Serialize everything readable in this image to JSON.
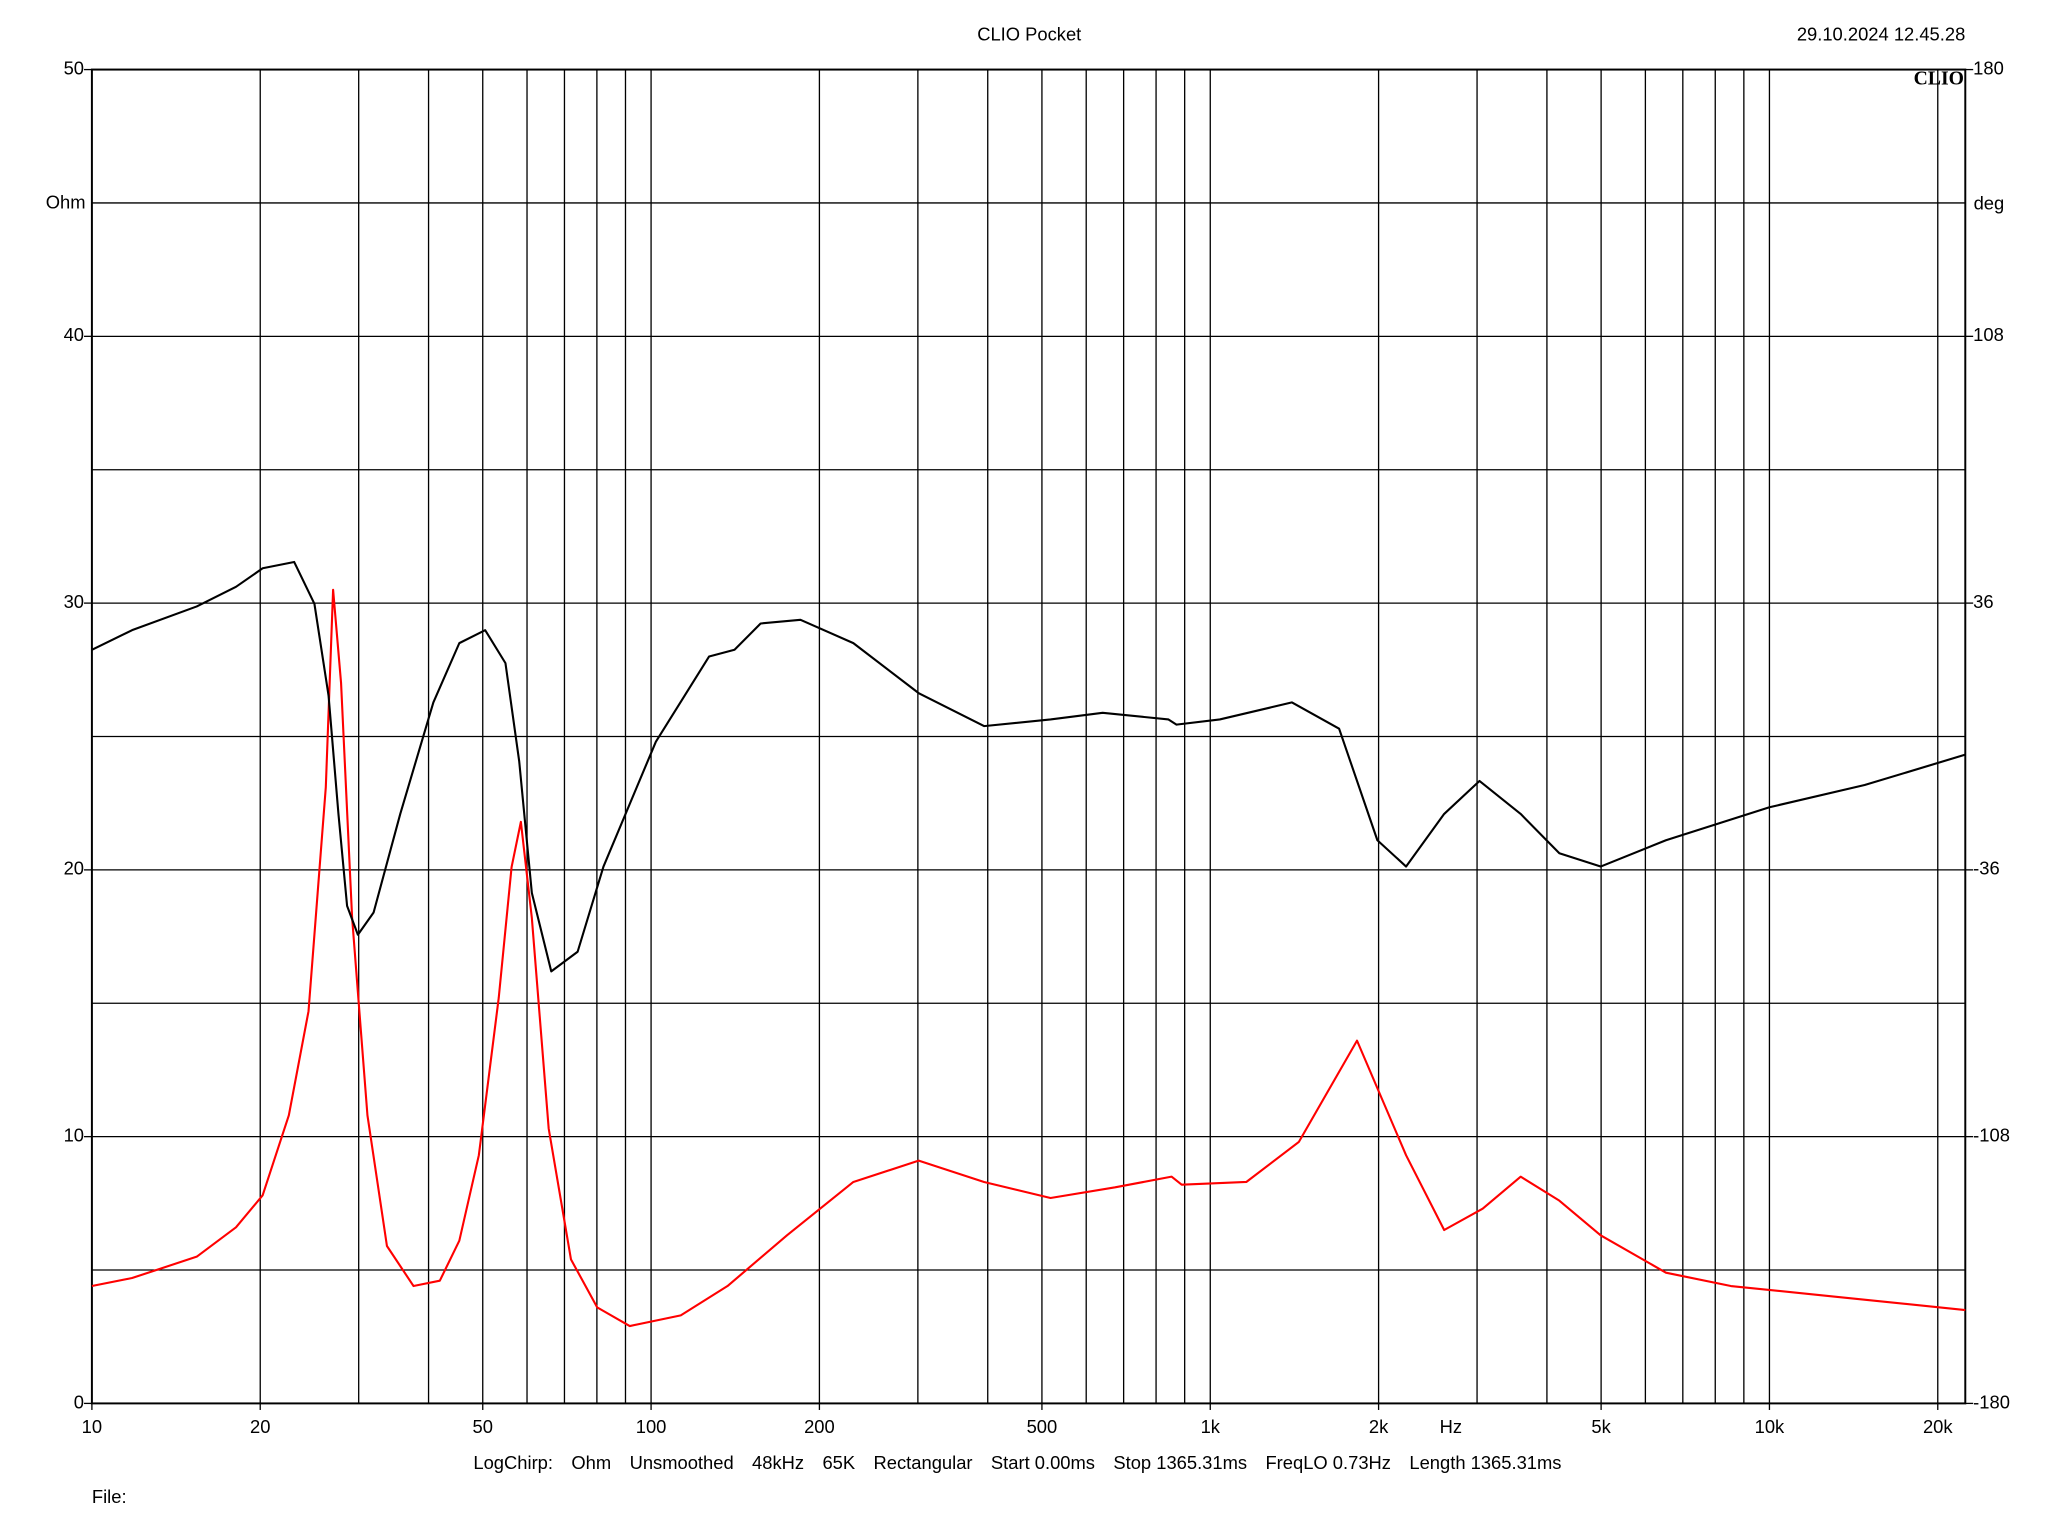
{
  "chart_data": {
    "type": "line",
    "title": "CLIO Pocket",
    "timestamp": "29.10.2024 12.45.28",
    "logo": "CLIO",
    "y_label": "Ohm",
    "y2_label": "deg",
    "x_label": "Hz",
    "xscale": "log",
    "xlim": [
      10,
      22400
    ],
    "xticks": [
      10,
      20,
      50,
      100,
      200,
      500,
      {
        "value": 1000,
        "label": "1k"
      },
      {
        "value": 2000,
        "label": "2k"
      },
      {
        "value": 5000,
        "label": "5k"
      },
      {
        "value": 10000,
        "label": "10k"
      },
      {
        "value": 20000,
        "label": "20k"
      }
    ],
    "xgrid": [
      10,
      20,
      30,
      40,
      50,
      60,
      70,
      80,
      90,
      100,
      200,
      300,
      400,
      500,
      600,
      700,
      800,
      900,
      1000,
      2000,
      3000,
      4000,
      5000,
      6000,
      7000,
      8000,
      9000,
      10000,
      20000
    ],
    "ylim": [
      0,
      50
    ],
    "yticks": [
      0,
      10,
      20,
      30,
      40,
      50
    ],
    "ygrid": [
      0,
      5,
      10,
      15,
      20,
      25,
      30,
      35,
      40,
      45,
      50
    ],
    "y2lim": [
      -180,
      180
    ],
    "y2ticks": [
      -180,
      -108,
      -36,
      36,
      108,
      180
    ],
    "grid": true,
    "series": [
      {
        "color": "#ff0000",
        "x": [
          10,
          11.8,
          15.4,
          18.1,
          20.2,
          22.5,
          24.4,
          26.2,
          27,
          27.9,
          29.2,
          31.1,
          33.7,
          37.6,
          41.9,
          45.4,
          49.2,
          53.4,
          56.3,
          58.5,
          61.2,
          65.6,
          71.9,
          80.1,
          91.6,
          113,
          137,
          175,
          230,
          301,
          394,
          518,
          676,
          853,
          889,
          1160,
          1440,
          1830,
          2240,
          2620,
          3070,
          3590,
          4210,
          4990,
          6530,
          8530,
          13100,
          22400
        ],
        "values": [
          4.4,
          4.7,
          5.5,
          6.6,
          7.8,
          10.8,
          14.7,
          23.1,
          30.5,
          27,
          18.2,
          10.8,
          5.9,
          4.4,
          4.6,
          6.1,
          9.3,
          15.2,
          20.1,
          21.8,
          18.2,
          10.3,
          5.4,
          3.6,
          2.9,
          3.3,
          4.4,
          6.3,
          8.3,
          9.1,
          8.3,
          7.7,
          8.1,
          8.5,
          8.2,
          8.3,
          9.8,
          13.6,
          9.3,
          6.5,
          7.3,
          8.5,
          7.6,
          6.3,
          4.9,
          4.4,
          4,
          3.5
        ]
      },
      {
        "color": "#000000",
        "axis": "y2",
        "x": [
          10,
          11.8,
          15.4,
          18.1,
          20.2,
          23,
          25,
          26.5,
          27.6,
          28.6,
          29.9,
          31.9,
          35.6,
          40.8,
          45.4,
          50.5,
          54.9,
          58.1,
          61.2,
          66.3,
          73.9,
          82.2,
          102,
          127,
          141,
          157,
          185,
          230,
          301,
          394,
          518,
          642,
          842,
          870,
          1040,
          1400,
          1700,
          1990,
          2240,
          2620,
          3030,
          3590,
          4210,
          4990,
          6530,
          10000,
          14800,
          22400
        ],
        "values": [
          23.4,
          28.7,
          35.1,
          40.4,
          45.4,
          47.1,
          35.8,
          11,
          -20.9,
          -45.7,
          -53.5,
          -47.5,
          -20.9,
          9.2,
          25.2,
          28.7,
          19.8,
          -6.7,
          -42.2,
          -63.4,
          -58.1,
          -35.1,
          -1.4,
          21.6,
          23.4,
          30.5,
          31.5,
          25.2,
          11.7,
          2.8,
          4.6,
          6.4,
          4.6,
          3.2,
          4.6,
          9.2,
          2.1,
          -28,
          -35.1,
          -20.9,
          -12,
          -20.9,
          -31.5,
          -35.1,
          -28,
          -19.1,
          -13.1,
          -4.9
        ]
      }
    ],
    "footer": [
      "LogChirp:",
      "Ohm",
      "Unsmoothed",
      "48kHz",
      "65K",
      "Rectangular",
      "Start 0.00ms",
      "Stop 1365.31ms",
      "FreqLO 0.73Hz",
      "Length 1365.31ms"
    ],
    "file_label": "File:"
  }
}
